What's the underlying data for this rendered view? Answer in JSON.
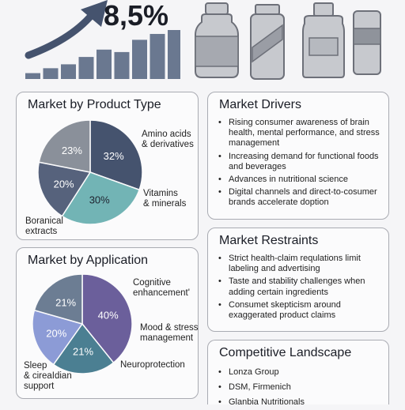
{
  "headline": {
    "value": "8,5%"
  },
  "colors": {
    "accent": "#45536e",
    "slate": "#6a7890",
    "teal": "#72b4b5",
    "gray": "#8a909a",
    "purple": "#6b5f9b",
    "lavender": "#8c9bd6",
    "blue_teal": "#4b7f92",
    "slate2": "#6c7d93"
  },
  "growth_chart": {
    "type": "bar",
    "bar_heights_relative": [
      0.12,
      0.22,
      0.3,
      0.45,
      0.6,
      0.55,
      0.8,
      0.92,
      1.0
    ],
    "arrow": "rising-trend-arrow"
  },
  "bottles": [
    "bottle-icon",
    "supplement-bottle-icon",
    "jar-icon",
    "capsule-container-icon"
  ],
  "product_type": {
    "title": "Market by Product Type",
    "labels": {
      "amino": "Amino acids\n& derivatives",
      "vitamins": "Vitamins\n& minerals",
      "botanical": "Boranical\nextracts"
    }
  },
  "application": {
    "title": "Market by Application",
    "labels": {
      "cognitive": "Cognitive\nenhancement'",
      "mood": "Mood & stress\nmanagement",
      "neuro": "Neuroprotection",
      "sleep": "Sleep\n& cireaIdian\nsupport"
    }
  },
  "drivers": {
    "title": "Market Drivers",
    "items": [
      "Rising consumer awareness of brain health, mental performance, and stress management",
      "Increasing demand for functional foods and beverages",
      "Advances in nutritional science",
      "Digital channels and direct-to-cosumer brands accelerate doption"
    ]
  },
  "restraints": {
    "title": "Market Restraints",
    "items": [
      "Strict health-claim requlations limit labeling and advertising",
      "Taste and stability challenges when adding certain ingredients",
      "Consumet skepticism around exaggerated product claims"
    ]
  },
  "competitive": {
    "title": "Competitive Landscape",
    "items": [
      "Lonza Group",
      "DSM, Firmenich",
      "Glanbia Nutritionals"
    ]
  },
  "chart_data": [
    {
      "type": "pie",
      "title": "Market by Product Type",
      "categories": [
        "32%",
        "30%",
        "20%",
        "23%"
      ],
      "values": [
        32,
        30,
        20,
        23
      ],
      "colors": [
        "#45536e",
        "#72b4b5",
        "#56627c",
        "#8a909a"
      ]
    },
    {
      "type": "pie",
      "title": "Market by Application",
      "categories": [
        "40%",
        "21%",
        "20%",
        "21%"
      ],
      "values": [
        40,
        21,
        20,
        21
      ],
      "colors": [
        "#6b5f9b",
        "#4b7f92",
        "#8c9bd6",
        "#6c7d93"
      ]
    }
  ]
}
